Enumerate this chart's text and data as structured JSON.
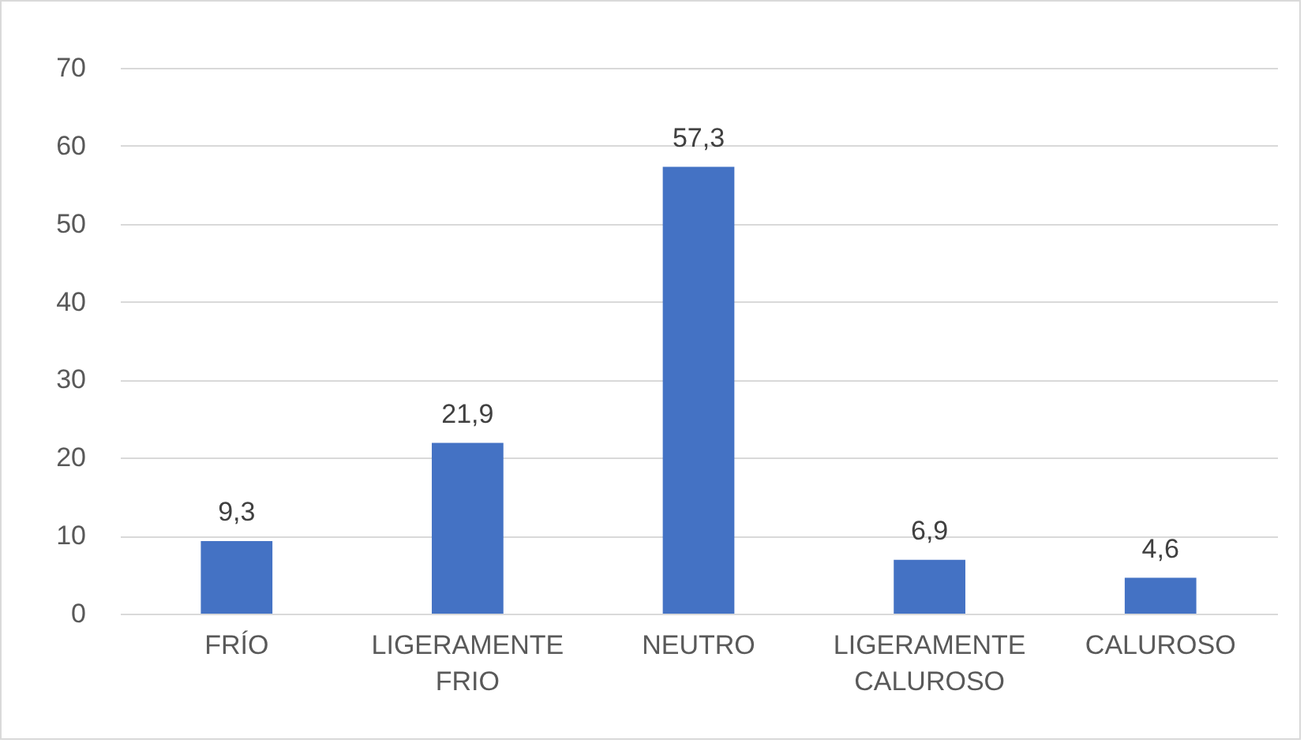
{
  "chart_data": {
    "type": "bar",
    "categories": [
      "FRÍO",
      "LIGERAMENTE FRIO",
      "NEUTRO",
      "LIGERAMENTE CALUROSO",
      "CALUROSO"
    ],
    "values": [
      9.3,
      21.9,
      57.3,
      6.9,
      4.6
    ],
    "value_labels": [
      "9,3",
      "21,9",
      "57,3",
      "6,9",
      "4,6"
    ],
    "color": "#4472c4",
    "ylim": [
      0,
      70
    ],
    "yticks": [
      0,
      10,
      20,
      30,
      40,
      50,
      60,
      70
    ],
    "grid": "y"
  }
}
